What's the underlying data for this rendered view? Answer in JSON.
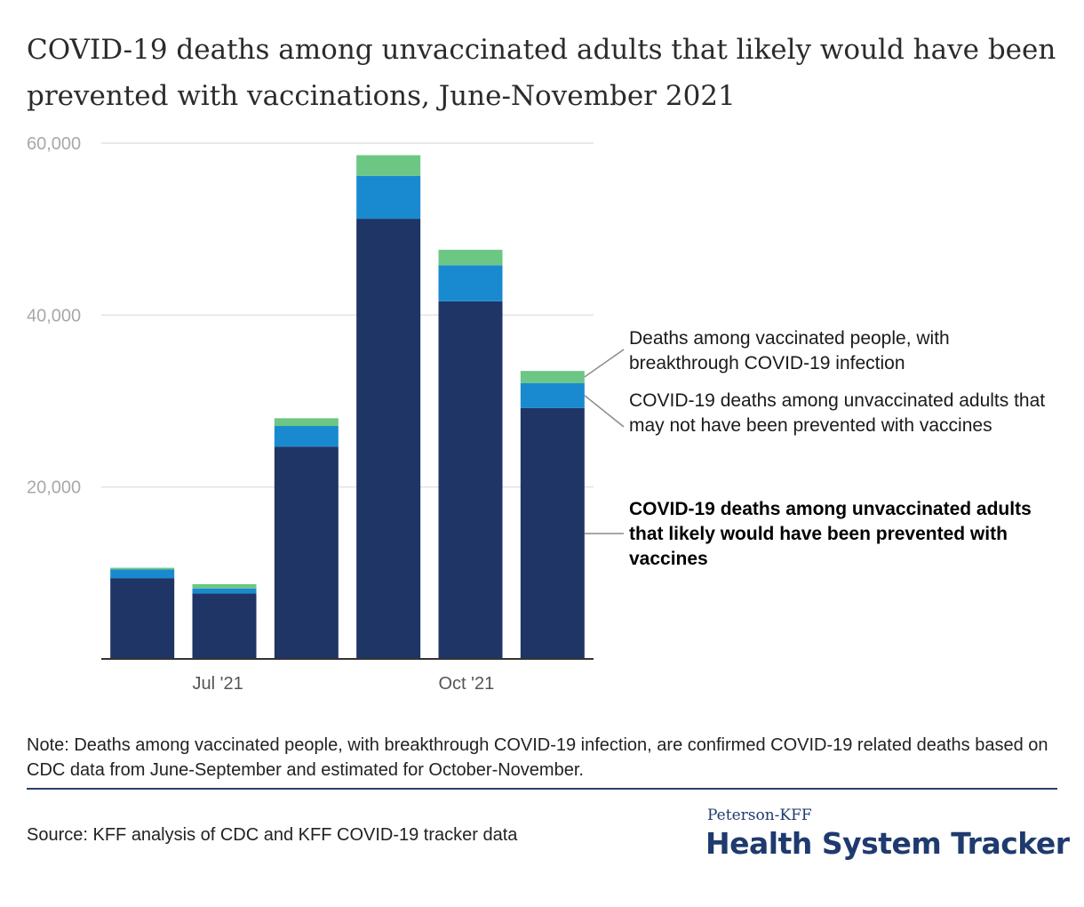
{
  "title": "COVID-19 deaths among unvaccinated adults that likely would have been prevented with vaccinations, June-November 2021",
  "note": "Note: Deaths among vaccinated people, with breakthrough COVID-19 infection, are confirmed COVID-19 related deaths based on CDC data from June-September and estimated for October-November.",
  "source": "Source: KFF analysis of CDC and KFF COVID-19 tracker data",
  "brand": {
    "top": "Peterson-KFF",
    "main": "Health System Tracker"
  },
  "colors": {
    "prevented": "#1f3566",
    "not_prevented": "#1a8ad0",
    "vaccinated": "#6cc784",
    "grid": "#e2e2e2",
    "axis": "#333333",
    "leader": "#8a8a8a"
  },
  "legend": {
    "vaccinated": "Deaths among vaccinated people, with breakthrough COVID-19 infection",
    "not_prevented": "COVID-19 deaths among unvaccinated adults that may not have been prevented with vaccines",
    "prevented": "COVID-19 deaths among unvaccinated adults that likely would have been prevented with vaccines"
  },
  "chart_data": {
    "type": "bar",
    "stacked": true,
    "x_tick_labels": [
      "Jul '21",
      "Oct '21"
    ],
    "y_ticks": [
      20000,
      40000,
      60000
    ],
    "y_tick_labels": [
      "20,000",
      "40,000",
      "60,000"
    ],
    "ylim": [
      0,
      60000
    ],
    "grid": true,
    "legend_position": "right",
    "series": [
      {
        "key": "prevented",
        "values": [
          9400,
          7600,
          24700,
          51200,
          41600,
          29200
        ]
      },
      {
        "key": "not_prevented",
        "values": [
          1000,
          600,
          2400,
          5000,
          4200,
          2900
        ]
      },
      {
        "key": "vaccinated",
        "values": [
          200,
          500,
          900,
          2400,
          1800,
          1400
        ]
      }
    ]
  }
}
